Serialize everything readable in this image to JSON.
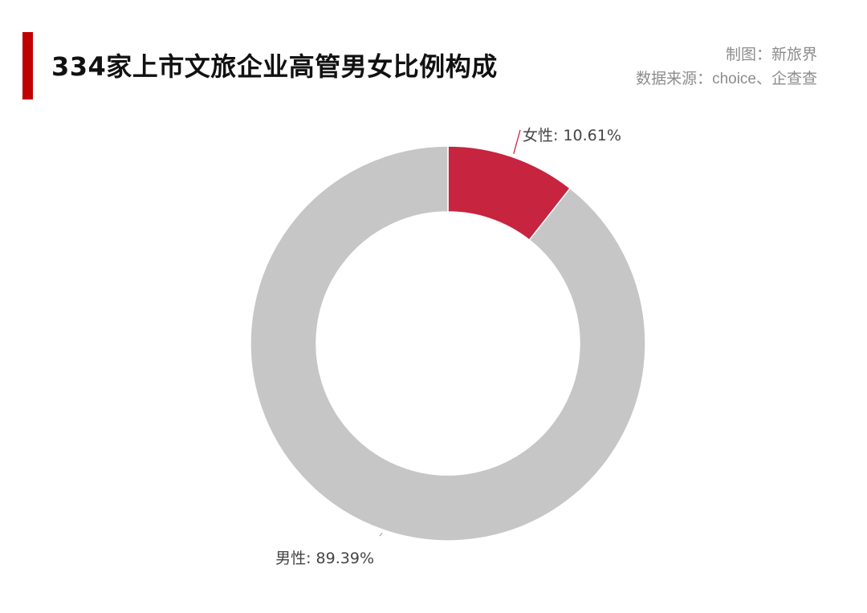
{
  "header": {
    "title": "334家上市文旅企业高管男女比例构成",
    "credit": "制图：新旅界",
    "source": "数据来源：choice、企查查"
  },
  "colors": {
    "accent": "#c00000",
    "female": "#c7243f",
    "male": "#c6c6c6",
    "separator": "#ffffff"
  },
  "chart_data": {
    "type": "pie",
    "style": "donut",
    "title": "334家上市文旅企业高管男女比例构成",
    "slices": [
      {
        "label": "女性",
        "value": 10.61,
        "display": "女性: 10.61%",
        "color": "#c7243f"
      },
      {
        "label": "男性",
        "value": 89.39,
        "display": "男性: 89.39%",
        "color": "#c6c6c6"
      }
    ],
    "start": "top",
    "direction": "clockwise"
  }
}
